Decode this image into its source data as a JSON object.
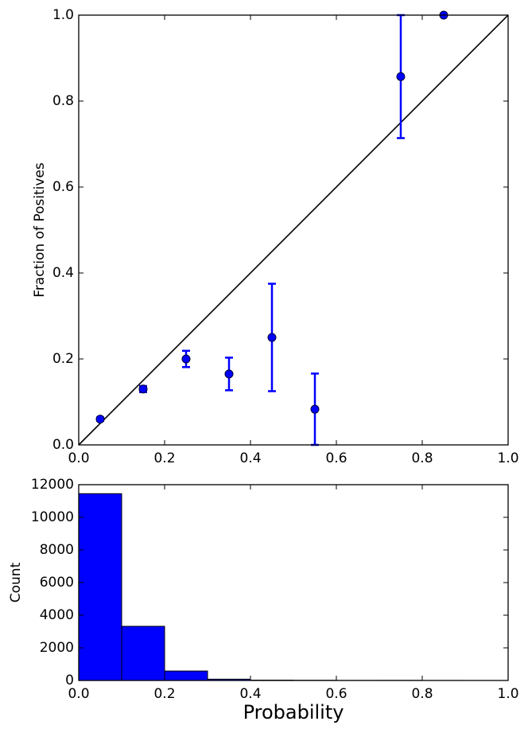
{
  "chart_data": [
    {
      "type": "scatter",
      "ylabel": "Fraction of Positives",
      "color": "#0000ff",
      "x": [
        0.05,
        0.15,
        0.25,
        0.35,
        0.45,
        0.55,
        0.75,
        0.85
      ],
      "values": [
        0.06,
        0.13,
        0.2,
        0.165,
        0.25,
        0.083,
        0.857,
        1.0
      ],
      "errors": [
        0.004,
        0.007,
        0.019,
        0.038,
        0.125,
        0.083,
        0.143,
        0.0
      ],
      "xlim": [
        0,
        1
      ],
      "ylim": [
        0,
        1
      ],
      "xticks": [
        {
          "value": 0,
          "label": "0.0"
        },
        0.2,
        0.4,
        0.6,
        0.8,
        {
          "value": 1,
          "label": "1.0"
        }
      ],
      "yticks": [
        {
          "value": 0,
          "label": "0.0"
        },
        0.2,
        0.4,
        0.6,
        0.8,
        {
          "value": 1,
          "label": "1.0"
        }
      ]
    },
    {
      "type": "histogram",
      "xlabel": "Probability",
      "ylabel": "Count",
      "color": "#0000ff",
      "bins": [
        0,
        0.1,
        0.2,
        0.3,
        0.4,
        0.5,
        0.6,
        0.7,
        0.8,
        0.9
      ],
      "values": [
        11450,
        3320,
        580,
        80,
        20,
        12,
        5,
        7,
        2
      ],
      "xlim": [
        0,
        1
      ],
      "ylim": [
        0,
        12000
      ],
      "xticks": [
        {
          "value": 0,
          "label": "0.0"
        },
        0.2,
        0.4,
        0.6,
        0.8,
        {
          "value": 1,
          "label": "1.0"
        }
      ],
      "yticks": [
        0,
        2000,
        4000,
        6000,
        8000,
        10000,
        12000
      ]
    }
  ]
}
